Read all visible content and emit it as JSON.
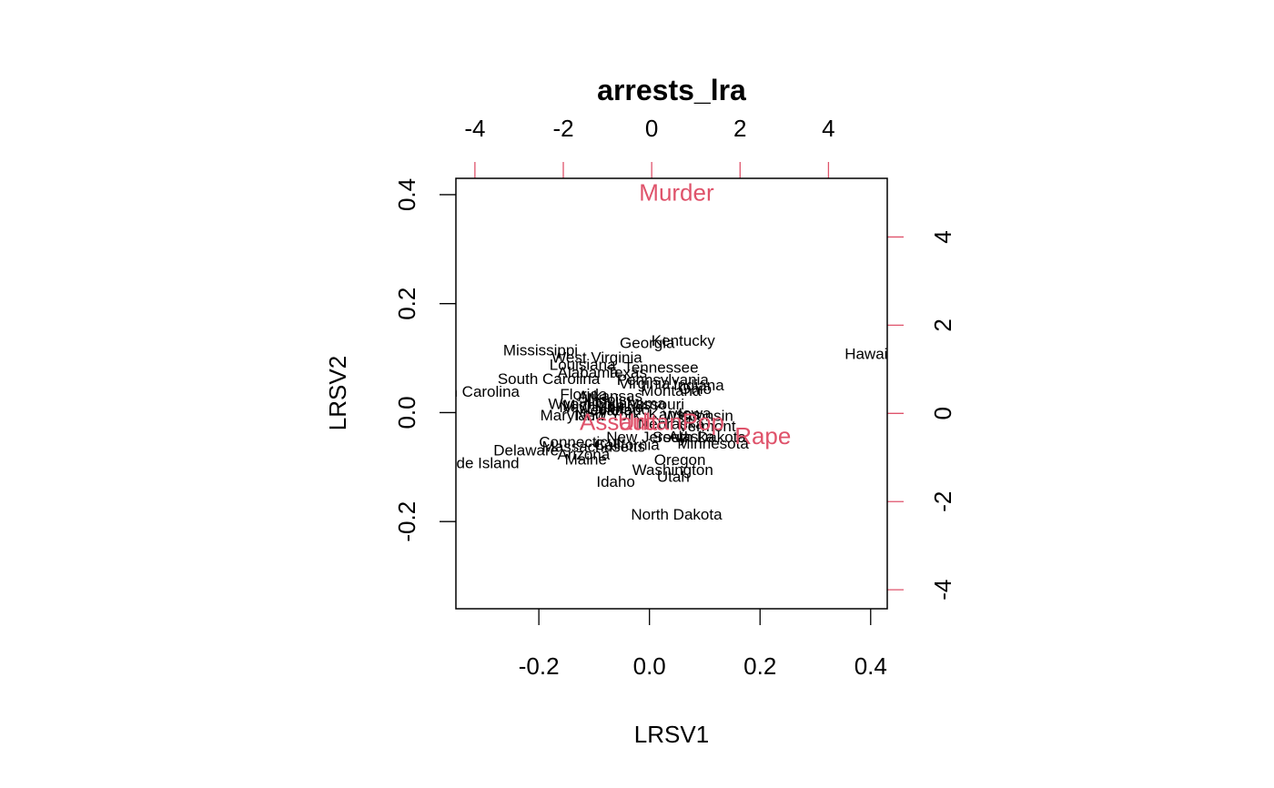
{
  "chart_data": {
    "type": "scatter",
    "title": "arrests_lra",
    "xlabel": "LRSV1",
    "ylabel": "LRSV2",
    "xlim": [
      -0.35,
      0.43
    ],
    "ylim": [
      -0.36,
      0.43
    ],
    "x_ticks": [
      "-0.2",
      "0.0",
      "0.2",
      "0.4"
    ],
    "y_ticks": [
      "-0.2",
      "0.0",
      "0.2",
      "0.4"
    ],
    "x_tick_values": [
      -0.2,
      0.0,
      0.2,
      0.4
    ],
    "y_tick_values": [
      -0.2,
      0.0,
      0.2,
      0.4
    ],
    "top_axis": {
      "lim": [
        -4.43,
        5.33
      ],
      "ticks": [
        "-4",
        "-2",
        "0",
        "2",
        "4"
      ],
      "tick_values": [
        -4,
        -2,
        0,
        2,
        4
      ],
      "color": "#DF536B"
    },
    "right_axis": {
      "lim": [
        -4.43,
        5.33
      ],
      "ticks": [
        "-4",
        "-2",
        "0",
        "2",
        "4"
      ],
      "tick_values": [
        -4,
        -2,
        0,
        2,
        4
      ],
      "color": "#DF536B"
    },
    "points": [
      {
        "label": "Kentucky",
        "x": 0.061,
        "y": 0.132
      },
      {
        "label": "Georgia",
        "x": -0.004,
        "y": 0.128
      },
      {
        "label": "Mississippi",
        "x": -0.197,
        "y": 0.114
      },
      {
        "label": "West Virginia",
        "x": -0.095,
        "y": 0.101
      },
      {
        "label": "Hawaii",
        "x": 0.395,
        "y": 0.108
      },
      {
        "label": "Louisiana",
        "x": -0.121,
        "y": 0.088
      },
      {
        "label": "Tennessee",
        "x": 0.021,
        "y": 0.083
      },
      {
        "label": "Alabama",
        "x": -0.111,
        "y": 0.073
      },
      {
        "label": "Texas",
        "x": -0.041,
        "y": 0.073
      },
      {
        "label": "South Carolina",
        "x": -0.182,
        "y": 0.062
      },
      {
        "label": "Pennsylvania",
        "x": 0.024,
        "y": 0.06
      },
      {
        "label": "Indiana",
        "x": 0.089,
        "y": 0.05
      },
      {
        "label": "Virginia",
        "x": -0.009,
        "y": 0.053
      },
      {
        "label": "Ohio",
        "x": 0.083,
        "y": 0.043
      },
      {
        "label": "North Carolina",
        "x": -0.325,
        "y": 0.038
      },
      {
        "label": "Montana",
        "x": 0.039,
        "y": 0.04
      },
      {
        "label": "Florida",
        "x": -0.119,
        "y": 0.033
      },
      {
        "label": "Arkansas",
        "x": -0.071,
        "y": 0.03
      },
      {
        "label": "Illinois",
        "x": -0.08,
        "y": 0.023
      },
      {
        "label": "Wyoming",
        "x": -0.125,
        "y": 0.016
      },
      {
        "label": "Michigan",
        "x": -0.101,
        "y": 0.013
      },
      {
        "label": "New Mexico",
        "x": -0.087,
        "y": 0.01
      },
      {
        "label": "Missouri",
        "x": 0.011,
        "y": 0.015
      },
      {
        "label": "Oklahoma",
        "x": -0.034,
        "y": 0.017
      },
      {
        "label": "Colorado",
        "x": -0.056,
        "y": 0.005
      },
      {
        "label": "Nevada",
        "x": -0.079,
        "y": 0.004
      },
      {
        "label": "Iowa",
        "x": 0.082,
        "y": -0.002
      },
      {
        "label": "Wisconsin",
        "x": 0.088,
        "y": -0.006
      },
      {
        "label": "Maryland",
        "x": -0.14,
        "y": -0.005
      },
      {
        "label": "New York",
        "x": -0.075,
        "y": -0.005
      },
      {
        "label": "Kansas",
        "x": 0.045,
        "y": -0.003
      },
      {
        "label": "Nebraska",
        "x": 0.039,
        "y": -0.021
      },
      {
        "label": "Vermont",
        "x": 0.104,
        "y": -0.025
      },
      {
        "label": "New Jersey",
        "x": -0.005,
        "y": -0.045
      },
      {
        "label": "Alaska",
        "x": 0.076,
        "y": -0.044
      },
      {
        "label": "South Dakota",
        "x": 0.09,
        "y": -0.045
      },
      {
        "label": "Connecticut",
        "x": -0.126,
        "y": -0.054
      },
      {
        "label": "California",
        "x": -0.041,
        "y": -0.059
      },
      {
        "label": "Minnesota",
        "x": 0.115,
        "y": -0.057
      },
      {
        "label": "Massachusetts",
        "x": -0.101,
        "y": -0.063
      },
      {
        "label": "Delaware",
        "x": -0.223,
        "y": -0.069
      },
      {
        "label": "Arizona",
        "x": -0.119,
        "y": -0.077
      },
      {
        "label": "Maine",
        "x": -0.115,
        "y": -0.086
      },
      {
        "label": "Oregon",
        "x": 0.055,
        "y": -0.087
      },
      {
        "label": "Rhode Island",
        "x": -0.318,
        "y": -0.093
      },
      {
        "label": "Washington",
        "x": 0.042,
        "y": -0.105
      },
      {
        "label": "Utah",
        "x": 0.043,
        "y": -0.118
      },
      {
        "label": "Idaho",
        "x": -0.061,
        "y": -0.127
      },
      {
        "label": "North Dakota",
        "x": 0.049,
        "y": -0.187
      }
    ],
    "variables": [
      {
        "label": "Murder",
        "x": 0.049,
        "y": 0.404
      },
      {
        "label": "Assault",
        "x": -0.056,
        "y": -0.017
      },
      {
        "label": "UrbanPop",
        "x": 0.039,
        "y": -0.017
      },
      {
        "label": "Rape",
        "x": 0.205,
        "y": -0.043
      }
    ]
  }
}
